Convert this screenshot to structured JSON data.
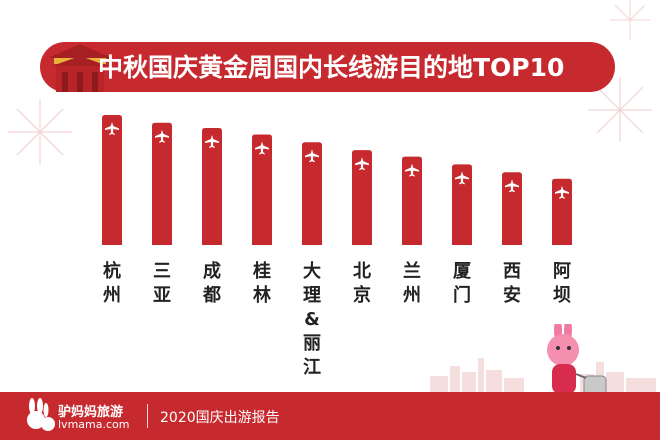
{
  "chart_data": {
    "type": "bar",
    "title": "中秋国庆黄金周国内长线游目的地TOP10",
    "categories": [
      "杭州",
      "三亚",
      "成都",
      "桂林",
      "大理&丽江",
      "北京",
      "兰州",
      "厦门",
      "西安",
      "阿坝"
    ],
    "values": [
      10,
      9.4,
      9.0,
      8.5,
      7.9,
      7.3,
      6.8,
      6.2,
      5.6,
      5.1
    ],
    "ylim": [
      0,
      10
    ],
    "grid": false,
    "legend": "none",
    "bar_color": "#c72a2e",
    "marker_icon": "airplane-icon"
  },
  "footer": {
    "brand_name": "驴妈妈旅游",
    "brand_domain": "lvmama.com",
    "report_label": "2020国庆出游报告"
  },
  "colors": {
    "accent": "#c72a2e",
    "text": "#222222"
  }
}
